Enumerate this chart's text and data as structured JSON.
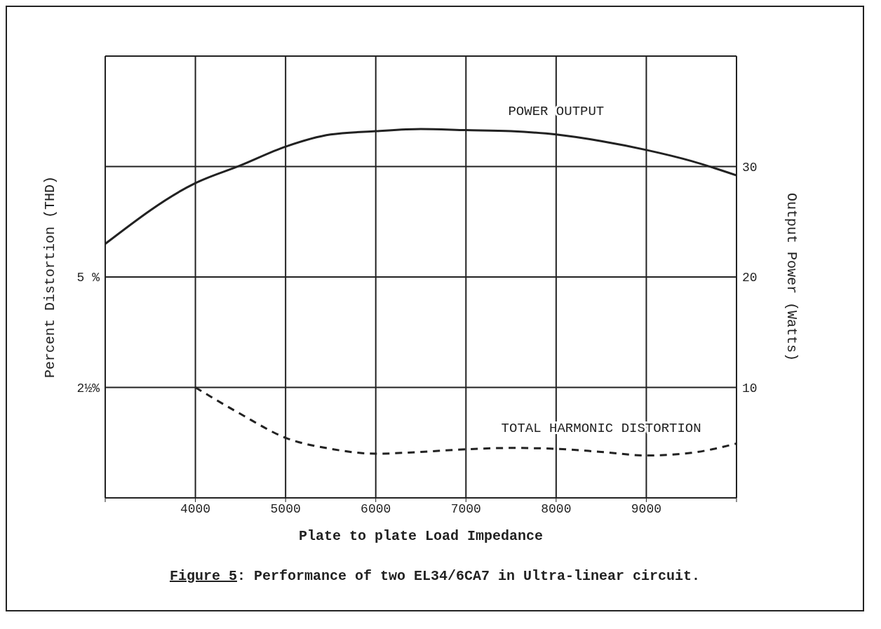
{
  "chart_data": {
    "type": "line",
    "title": "Figure 5: Performance of two EL34/6CA7 in Ultra-linear circuit.",
    "xlabel": "Plate to plate Load Impedance",
    "ylabel": "Percent Distortion (THD)",
    "y2label": "Output Power (Watts)",
    "xlim": [
      3000,
      10000
    ],
    "xticks": [
      {
        "value": 3000,
        "label": null
      },
      4000,
      5000,
      6000,
      7000,
      8000,
      9000,
      {
        "value": 10000,
        "label": null
      }
    ],
    "ylim": [
      0,
      10
    ],
    "yticks": [
      {
        "value": 0,
        "label": null
      },
      {
        "value": 2.5,
        "label": "2½%"
      },
      {
        "value": 5,
        "label": "5 %"
      },
      {
        "value": 7.5,
        "label": null
      },
      {
        "value": 10,
        "label": null
      }
    ],
    "y2lim": [
      0,
      40
    ],
    "y2ticks": [
      10,
      20,
      30
    ],
    "grid": true,
    "legend": false,
    "marker": "none",
    "series": [
      {
        "name": "POWER OUTPUT",
        "color": "#222222",
        "axis": "y2",
        "line_style": "solid",
        "x": [
          3000,
          4000,
          4500,
          5000,
          5500,
          6000,
          6500,
          7000,
          7500,
          8000,
          8500,
          9000,
          9500,
          10000
        ],
        "values": [
          23.0,
          28.5,
          30.1,
          31.8,
          32.9,
          33.2,
          33.4,
          33.3,
          33.2,
          32.9,
          32.3,
          31.5,
          30.5,
          29.2
        ]
      },
      {
        "name": "TOTAL HARMONIC DISTORTION",
        "color": "#222222",
        "axis": "y",
        "line_style": "dashed",
        "x": [
          4000,
          4500,
          5000,
          5500,
          6000,
          6500,
          7000,
          7500,
          8000,
          8500,
          9000,
          9500,
          10000
        ],
        "values": [
          2.5,
          1.9,
          1.36,
          1.11,
          1.0,
          1.04,
          1.1,
          1.13,
          1.11,
          1.04,
          0.96,
          1.02,
          1.23
        ]
      }
    ]
  }
}
